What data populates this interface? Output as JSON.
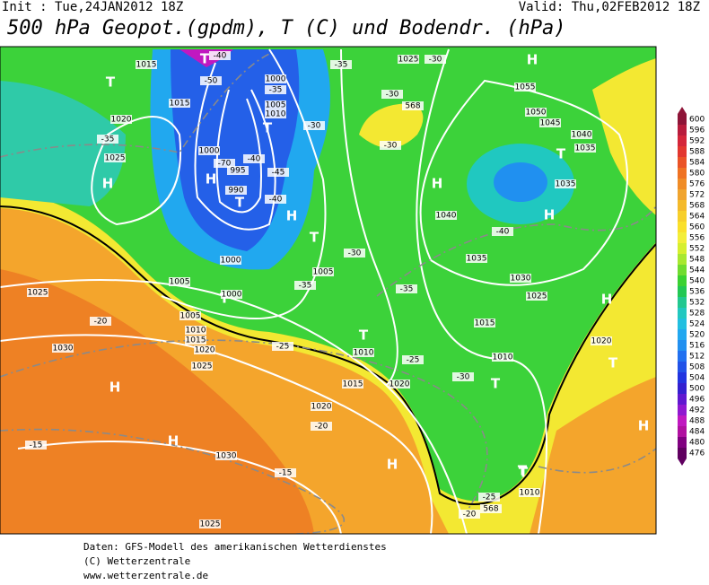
{
  "header": {
    "init": "Init : Tue,24JAN2012 18Z",
    "valid": "Valid: Thu,02FEB2012 18Z",
    "title": "500 hPa Geopot.(gpdm), T (C) und Bodendr. (hPa)"
  },
  "colorbar": [
    600,
    596,
    592,
    588,
    584,
    580,
    576,
    572,
    568,
    564,
    560,
    556,
    552,
    548,
    544,
    540,
    536,
    532,
    528,
    524,
    520,
    516,
    512,
    508,
    504,
    500,
    496,
    492,
    488,
    484,
    480,
    476
  ],
  "map": {
    "labels": [
      1015,
      "T",
      -40,
      -50,
      1000,
      -35,
      -35,
      1025,
      -30,
      "H",
      1055,
      "T",
      1015,
      1005,
      1010,
      -30,
      568,
      -30,
      1050,
      1045,
      1020,
      "T",
      -30,
      1040,
      1035,
      -35,
      1000,
      "T",
      1025,
      -40,
      -45,
      -70,
      995,
      "H",
      "H",
      990,
      "T",
      -40,
      "H",
      1035,
      "H",
      "H",
      1040,
      "T",
      -40,
      1000,
      -30,
      1035,
      1005,
      1030,
      1005,
      -35,
      -35,
      1025,
      "T",
      1000,
      1025,
      "H",
      -20,
      1005,
      1015,
      1010,
      "T",
      1015,
      1020,
      -25,
      1020,
      1030,
      1010,
      -25,
      1010,
      "T",
      1025,
      "H",
      1015,
      1020,
      -30,
      "T",
      "T",
      1020,
      -20,
      "H",
      "H",
      -15,
      1030,
      "H",
      -15,
      "T",
      1010,
      -25,
      568,
      -20,
      1025
    ]
  },
  "footer": [
    "Daten: GFS-Modell des amerikanischen Wetterdienstes",
    "(C) Wetterzentrale",
    "www.wetterzentrale.de"
  ]
}
